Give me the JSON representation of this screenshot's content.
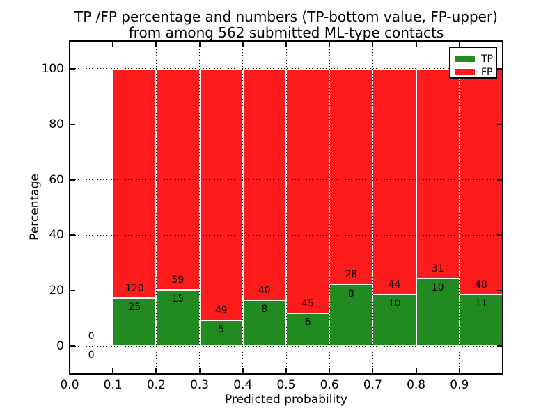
{
  "title": {
    "line1": "TP /FP percentage and numbers (TP-bottom value, FP-upper)",
    "line2": "from among 562 submitted ML-type contacts"
  },
  "legend": {
    "items": [
      {
        "label": "TP",
        "color": "#218b21"
      },
      {
        "label": "FP",
        "color": "#fe1b1b"
      }
    ]
  },
  "chart_data": {
    "type": "bar",
    "stacked": true,
    "title": "TP /FP percentage and numbers (TP-bottom value, FP-upper) from among 562 submitted ML-type contacts",
    "xlabel": "Predicted probability",
    "ylabel": "Percentage",
    "xlim": [
      0,
      1
    ],
    "ylim": [
      -10,
      110
    ],
    "xticks": {
      "labels": [
        "0.0",
        "0.1",
        "0.2",
        "0.3",
        "0.4",
        "0.5",
        "0.6",
        "0.7",
        "0.8",
        "0.9"
      ],
      "values": [
        0,
        0.1,
        0.2,
        0.3,
        0.4,
        0.5,
        0.6,
        0.7,
        0.8,
        0.9
      ]
    },
    "yticks": {
      "labels": [
        "0",
        "20",
        "40",
        "60",
        "80",
        "100"
      ],
      "values": [
        0,
        20,
        40,
        60,
        80,
        100
      ]
    },
    "grid": "dotted",
    "legend_position": "upper-right",
    "series": [
      {
        "name": "TP",
        "color": "#218b21",
        "position": "bottom"
      },
      {
        "name": "FP",
        "color": "#fe1b1b",
        "position": "top"
      }
    ],
    "bins": [
      {
        "x0": 0.0,
        "x1": 0.1,
        "tp": 0,
        "fp": 0
      },
      {
        "x0": 0.1,
        "x1": 0.2,
        "tp": 25,
        "fp": 120
      },
      {
        "x0": 0.2,
        "x1": 0.3,
        "tp": 15,
        "fp": 59
      },
      {
        "x0": 0.3,
        "x1": 0.4,
        "tp": 5,
        "fp": 49
      },
      {
        "x0": 0.4,
        "x1": 0.5,
        "tp": 8,
        "fp": 40
      },
      {
        "x0": 0.5,
        "x1": 0.6,
        "tp": 6,
        "fp": 45
      },
      {
        "x0": 0.6,
        "x1": 0.7,
        "tp": 8,
        "fp": 28
      },
      {
        "x0": 0.7,
        "x1": 0.8,
        "tp": 10,
        "fp": 44
      },
      {
        "x0": 0.8,
        "x1": 0.9,
        "tp": 10,
        "fp": 31
      },
      {
        "x0": 0.9,
        "x1": 1.0,
        "tp": 11,
        "fp": 48
      }
    ],
    "total_submitted": 562,
    "bar_value_unit": "percent of bin total; TP+FP stack to 100%"
  },
  "colors": {
    "background": "#ffffff",
    "text": "#000000",
    "tp": "#218b21",
    "fp": "#fe1b1b",
    "grid": "#000000",
    "bar_edge": "#ffffff"
  }
}
